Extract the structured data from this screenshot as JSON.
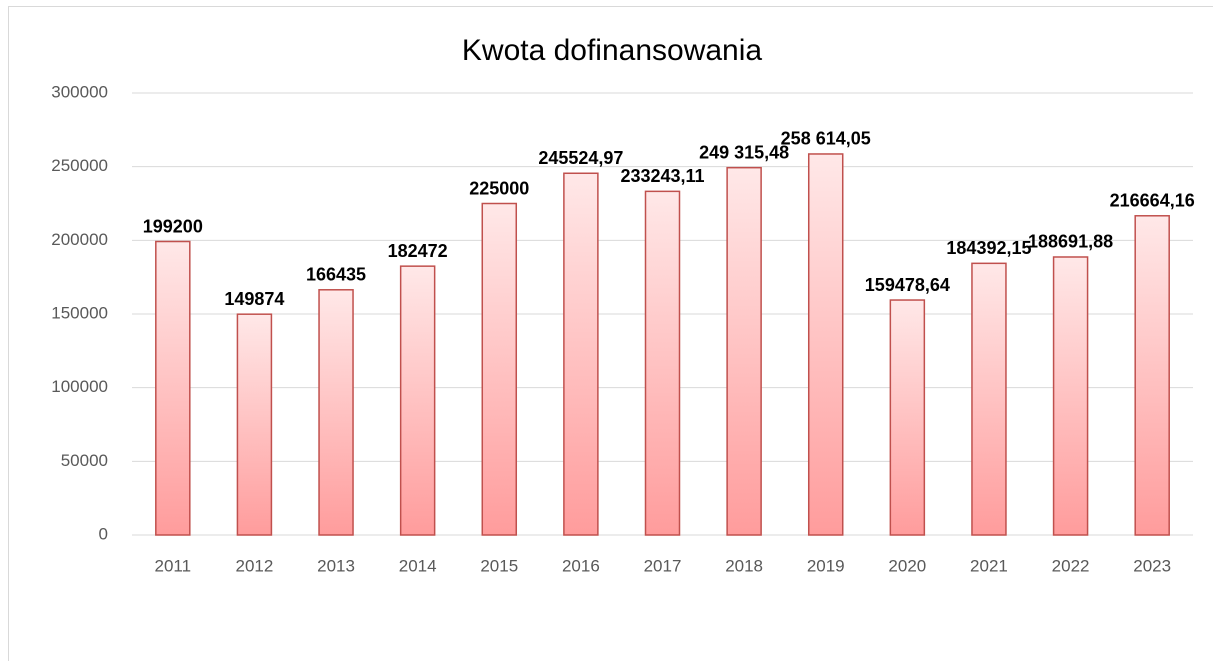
{
  "chart_data": {
    "type": "bar",
    "title": "Kwota dofinansowania",
    "categories": [
      "2011",
      "2012",
      "2013",
      "2014",
      "2015",
      "2016",
      "2017",
      "2018",
      "2019",
      "2020",
      "2021",
      "2022",
      "2023"
    ],
    "values": [
      199200,
      149874,
      166435,
      182472,
      225000,
      245524.97,
      233243.11,
      249315.48,
      258614.05,
      159478.64,
      184392.15,
      188691.88,
      216664.16
    ],
    "value_labels": [
      "199200",
      "149874",
      "166435",
      "182472",
      "225000",
      "245524,97",
      "233243,11",
      "249 315,48",
      "258 614,05",
      "159478,64",
      "184392,15",
      "188691,88",
      "216664,16"
    ],
    "color": "#ff9c9c",
    "edge_color": "#c0504d",
    "ylim": [
      0,
      300000
    ],
    "yticks": [
      0,
      50000,
      100000,
      150000,
      200000,
      250000,
      300000
    ],
    "grid": true
  }
}
